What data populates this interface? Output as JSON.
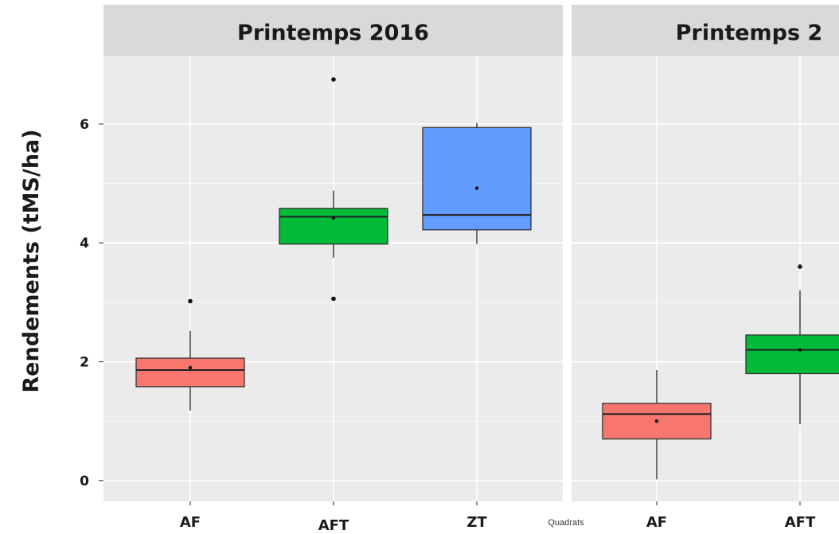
{
  "chart_data": {
    "type": "box",
    "ylabel": "Rendements (tMS/ha)",
    "xlabel": "Quadrats",
    "ylim": [
      -0.35,
      7.15
    ],
    "yticks": [
      0,
      2,
      4,
      6
    ],
    "grid": true,
    "colors": {
      "AF": "#f8766d",
      "AFT": "#00ba38",
      "ZT": "#619cff"
    },
    "panels": [
      {
        "title": "Printemps 2016",
        "categories": [
          "AF",
          "AFT",
          "ZT"
        ],
        "boxes": [
          {
            "category": "AF",
            "whisker_low": 1.18,
            "q1": 1.58,
            "median": 1.86,
            "q3": 2.06,
            "whisker_high": 2.52,
            "mean": 1.9,
            "outliers": [
              3.02
            ]
          },
          {
            "category": "AFT",
            "whisker_low": 3.75,
            "q1": 3.98,
            "median": 4.44,
            "q3": 4.58,
            "whisker_high": 4.88,
            "mean": 4.42,
            "outliers": [
              3.06,
              6.75
            ]
          },
          {
            "category": "ZT",
            "whisker_low": 3.98,
            "q1": 4.22,
            "median": 4.47,
            "q3": 5.94,
            "whisker_high": 6.02,
            "mean": 4.92,
            "outliers": []
          }
        ]
      },
      {
        "title": "Printemps 2",
        "categories": [
          "AF",
          "AFT"
        ],
        "boxes": [
          {
            "category": "AF",
            "whisker_low": 0.02,
            "q1": 0.7,
            "median": 1.12,
            "q3": 1.3,
            "whisker_high": 1.86,
            "mean": 1.0,
            "outliers": []
          },
          {
            "category": "AFT",
            "whisker_low": 0.95,
            "q1": 1.8,
            "median": 2.2,
            "q3": 2.45,
            "whisker_high": 3.2,
            "mean": 2.2,
            "outliers": [
              3.6
            ]
          }
        ]
      }
    ]
  }
}
